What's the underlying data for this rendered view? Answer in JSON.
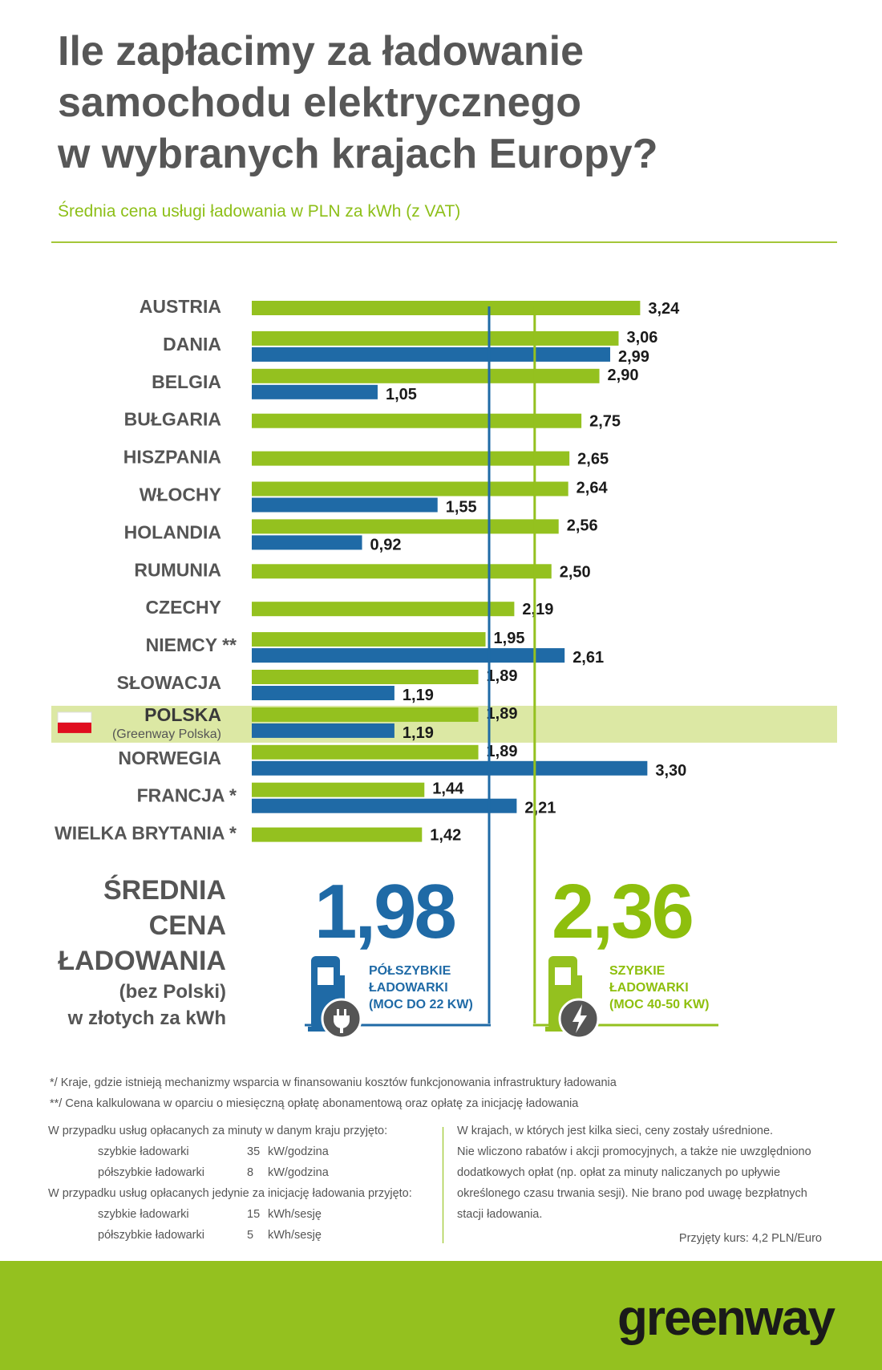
{
  "title": {
    "line1": "Ile zapłacimy za ładowanie",
    "line2": "samochodu elektrycznego",
    "line3": "w wybranych krajach Europy?"
  },
  "subtitle": "Średnia cena usługi ładowania w PLN za kWh (z VAT)",
  "chart_data": {
    "type": "bar",
    "orientation": "horizontal",
    "categories": [
      "AUSTRIA",
      "DANIA",
      "BELGIA",
      "BUŁGARIA",
      "HISZPANIA",
      "WŁOCHY",
      "HOLANDIA",
      "RUMUNIA",
      "CZECHY",
      "NIEMCY **",
      "SŁOWACJA",
      "POLSKA",
      "NORWEGIA",
      "FRANCJA *",
      "WIELKA BRYTANIA *"
    ],
    "highlight": {
      "category": "POLSKA",
      "sublabel": "(Greenway Polska)"
    },
    "series": [
      {
        "key": "fast",
        "color": "#94c11f",
        "values": [
          3.24,
          3.06,
          2.9,
          2.75,
          2.65,
          2.64,
          2.56,
          2.5,
          2.19,
          1.95,
          1.89,
          1.89,
          1.89,
          1.44,
          1.42
        ]
      },
      {
        "key": "semi",
        "color": "#1f6aa6",
        "values": [
          null,
          2.99,
          1.05,
          null,
          null,
          1.55,
          0.92,
          null,
          null,
          2.61,
          1.19,
          1.19,
          3.3,
          2.21,
          null
        ]
      }
    ],
    "value_labels": {
      "fast": [
        "3,24",
        "3,06",
        "2,90",
        "2,75",
        "2,65",
        "2,64",
        "2,56",
        "2,50",
        "2,19",
        "1,95",
        "1,89",
        "1,89",
        "1,89",
        "1,44",
        "1,42"
      ],
      "semi": [
        "",
        "2,99",
        "1,05",
        "",
        "",
        "1,55",
        "0,92",
        "",
        "",
        "2,61",
        "1,19",
        "1,19",
        "3,30",
        "2,21",
        ""
      ]
    },
    "averages": {
      "semi": 1.98,
      "fast": 2.36
    },
    "xlim": [
      0,
      3.45
    ],
    "grid": false
  },
  "average": {
    "label_lines": [
      "ŚREDNIA",
      "CENA",
      "ŁADOWANIA"
    ],
    "label_small_lines": [
      "(bez Polski)",
      "w złotych za kWh"
    ],
    "semi_value": "1,98",
    "fast_value": "2,36",
    "semi_label": [
      "PÓŁSZYBKIE",
      "ŁADOWARKI",
      "(MOC DO 22 KW)"
    ],
    "fast_label": [
      "SZYBKIE",
      "ŁADOWARKI",
      "(MOC 40-50 KW)"
    ]
  },
  "notes": {
    "note1": "*/   Kraje, gdzie istnieją mechanizmy wsparcia  w finansowaniu kosztów funkcjonowania infrastruktury ładowania",
    "note2": "**/ Cena kalkulowana w oparciu o miesięczną opłatę abonamentową oraz opłatę za inicjację ładowania",
    "left_head1": "W przypadku usług opłacanych za minuty w danym kraju przyjęto:",
    "left_rows1": [
      {
        "name": "szybkie ładowarki",
        "val": "35",
        "unit": "kW/godzina"
      },
      {
        "name": "półszybkie ładowarki",
        "val": "8",
        "unit": "kW/godzina"
      }
    ],
    "left_head2": "W przypadku usług opłacanych jedynie za inicjację ładowania przyjęto:",
    "left_rows2": [
      {
        "name": "szybkie ładowarki",
        "val": "15",
        "unit": "kWh/sesję"
      },
      {
        "name": "półszybkie ładowarki",
        "val": "5",
        "unit": "kWh/sesję"
      }
    ],
    "right_lines": [
      "W krajach, w których jest kilka sieci, ceny zostały uśrednione.",
      "Nie wliczono rabatów i akcji promocyjnych, a także nie uwzględniono",
      "dodatkowych opłat (np. opłat za minuty naliczanych po upływie",
      "określonego czasu trwania sesji). Nie brano pod uwagę bezpłatnych",
      "stacji ładowania."
    ],
    "exchange": "Przyjęty kurs: 4,2 PLN/Euro"
  },
  "brand": "greenway",
  "colors": {
    "green": "#94c11f",
    "blue": "#1f6aa6",
    "highlight": "#dce8a4"
  }
}
